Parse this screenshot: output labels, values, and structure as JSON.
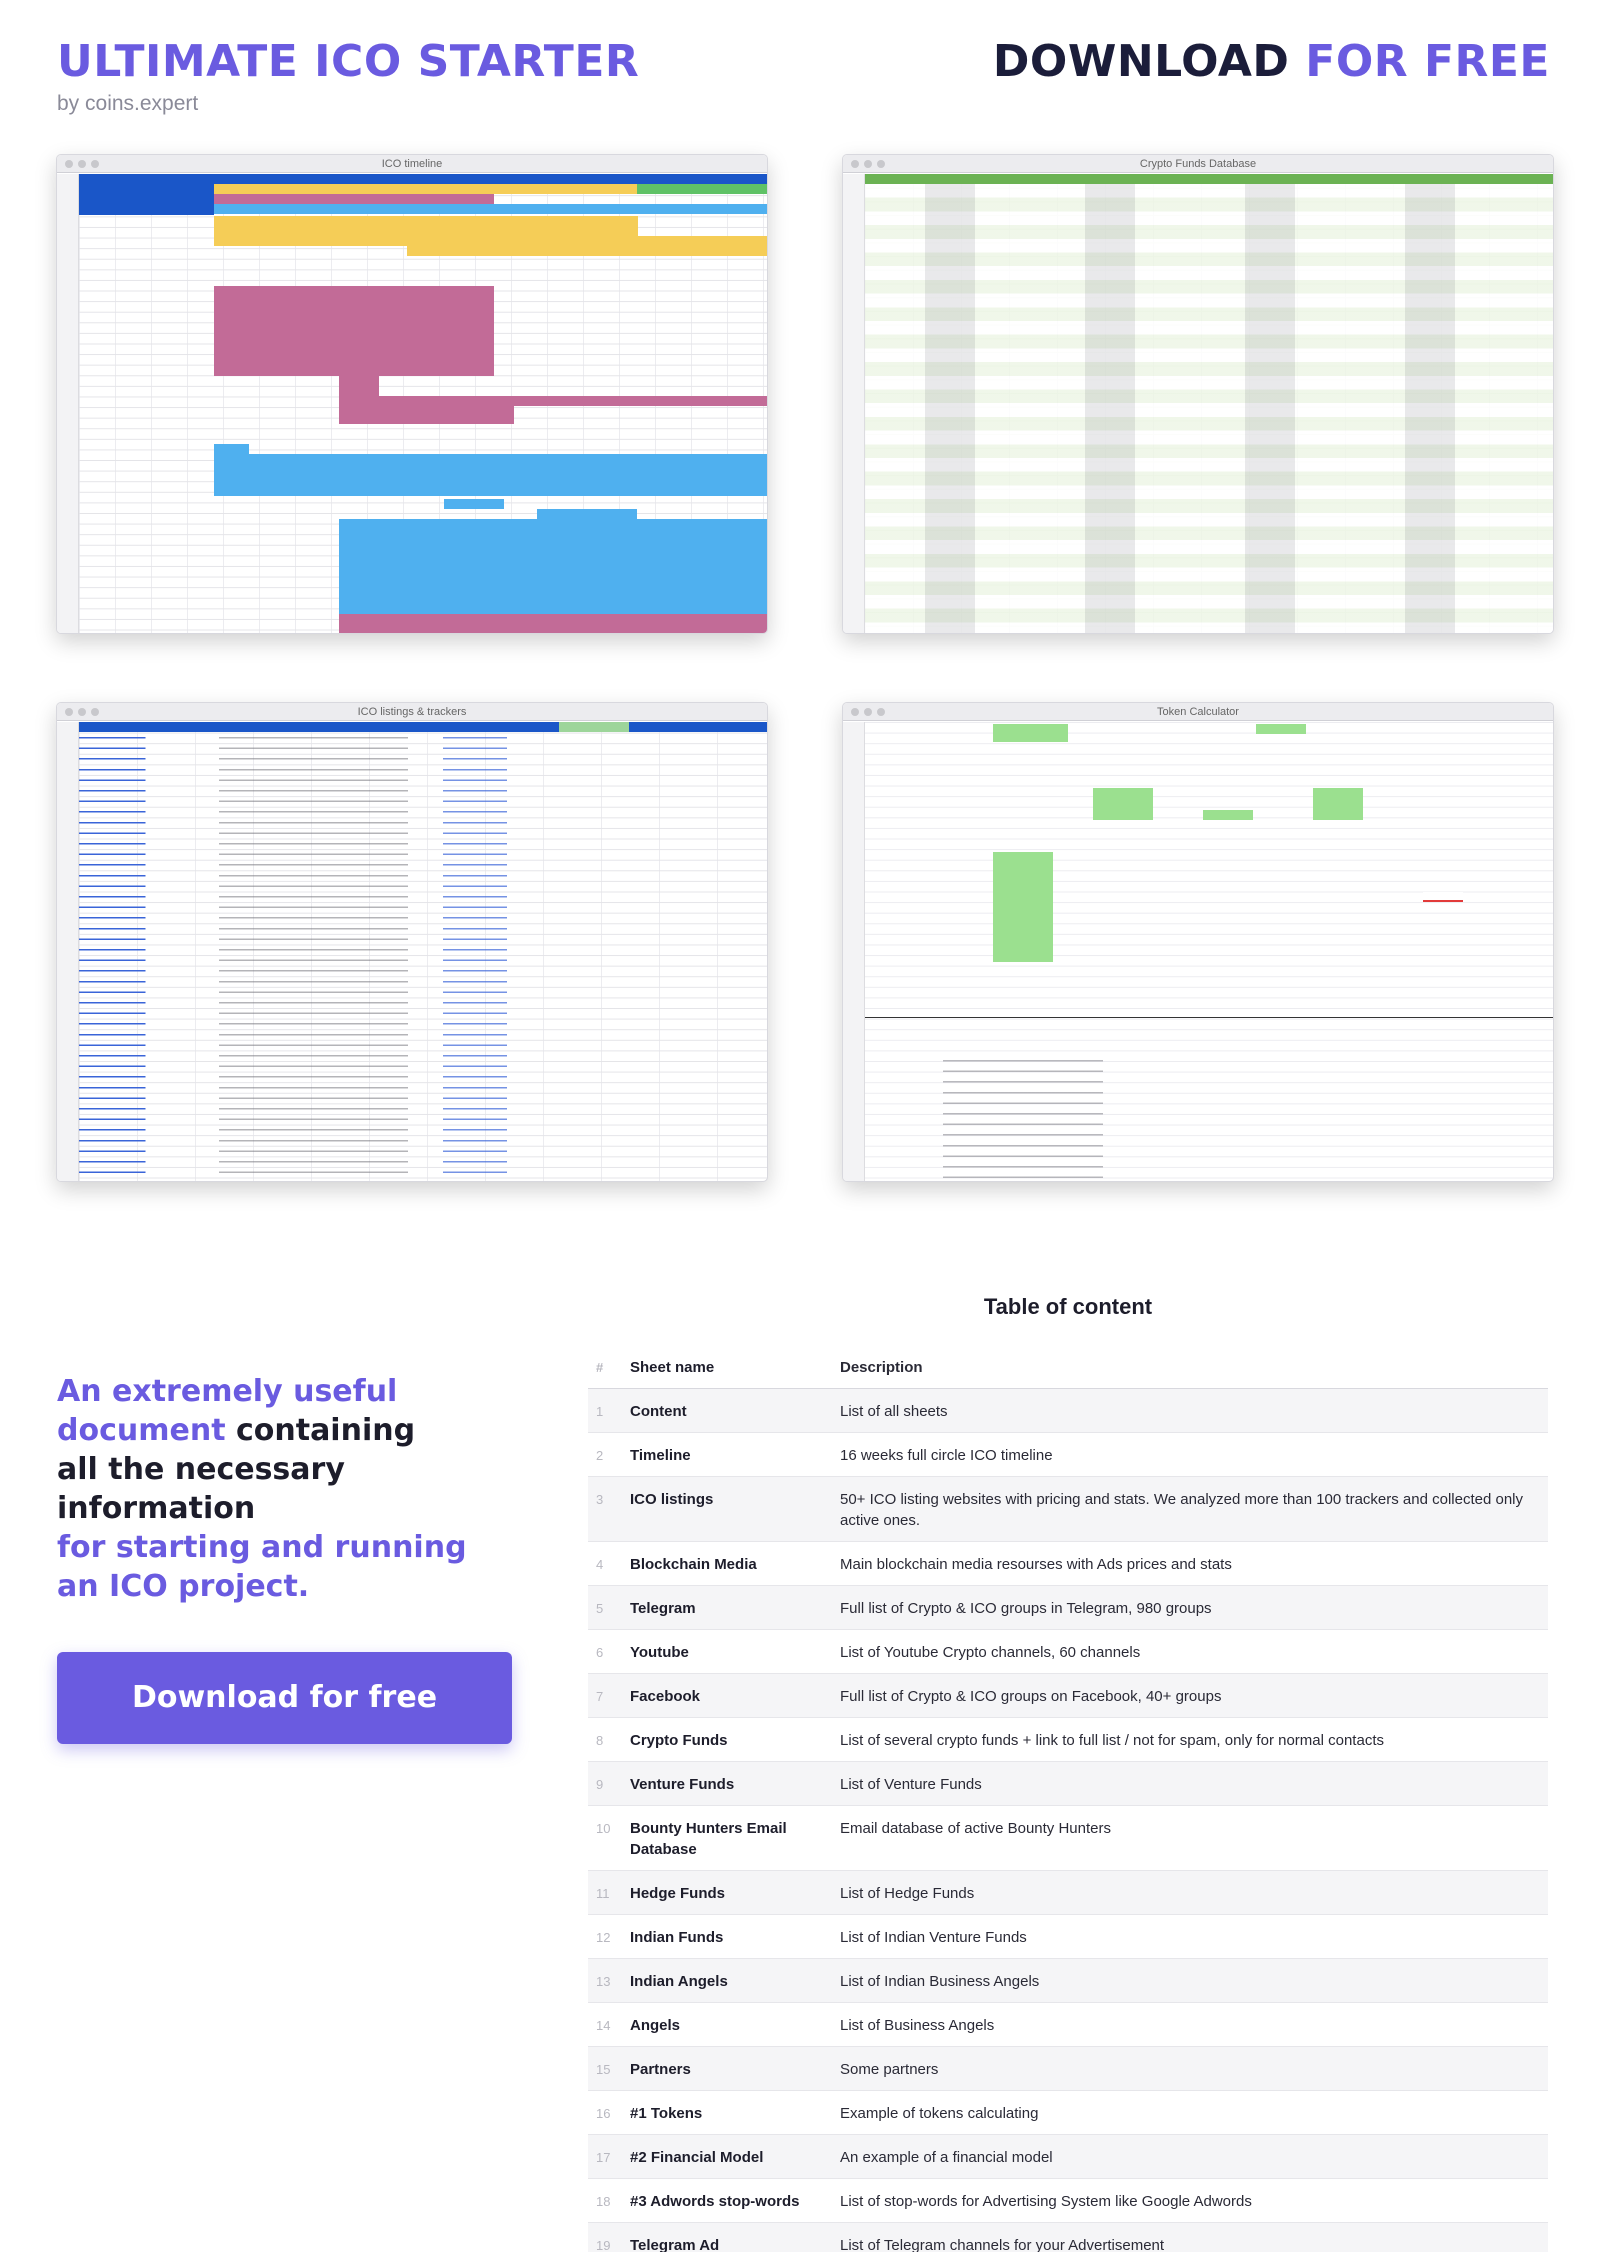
{
  "header": {
    "title": "ULTIMATE ICO STARTER",
    "byline": "by coins.expert",
    "download_dark": "DOWNLOAD",
    "download_accent": "FOR FREE"
  },
  "sheets": [
    {
      "title": "ICO timeline"
    },
    {
      "title": "Crypto Funds Database"
    },
    {
      "title": "ICO listings & trackers"
    },
    {
      "title": "Token Calculator"
    }
  ],
  "lead": {
    "line1_accent": "An extremely useful",
    "line2_accent": "document",
    "line2_dark": " containing",
    "line3_dark": "all the necessary information",
    "line4_accent": "for starting and running",
    "line5_accent": "an ICO project."
  },
  "cta": {
    "label": "Download for free"
  },
  "toc": {
    "title": "Table of content",
    "columns": {
      "num": "#",
      "name": "Sheet name",
      "desc": "Description"
    },
    "rows": [
      {
        "num": "1",
        "name": "Content",
        "desc": "List of all sheets"
      },
      {
        "num": "2",
        "name": "Timeline",
        "desc": "16 weeks full circle ICO timeline"
      },
      {
        "num": "3",
        "name": "ICO listings",
        "desc": "50+ ICO listing websites with pricing and stats. We analyzed more than 100 trackers and collected only active ones."
      },
      {
        "num": "4",
        "name": "Blockchain Media",
        "desc": "Main blockchain media resourses with Ads prices and stats"
      },
      {
        "num": "5",
        "name": "Telegram",
        "desc": "Full list of Crypto & ICO groups in Telegram, 980 groups"
      },
      {
        "num": "6",
        "name": "Youtube",
        "desc": "List of Youtube Crypto channels, 60 channels"
      },
      {
        "num": "7",
        "name": "Facebook",
        "desc": "Full list of Crypto & ICO groups on Facebook, 40+ groups"
      },
      {
        "num": "8",
        "name": "Crypto Funds",
        "desc": "List of several crypto funds + link to full list / not for spam, only for normal contacts"
      },
      {
        "num": "9",
        "name": "Venture Funds",
        "desc": "List of Venture Funds"
      },
      {
        "num": "10",
        "name": "Bounty Hunters Email Database",
        "desc": "Email database of active Bounty Hunters"
      },
      {
        "num": "11",
        "name": "Hedge Funds",
        "desc": "List of Hedge Funds"
      },
      {
        "num": "12",
        "name": "Indian Funds",
        "desc": "List of Indian Venture Funds"
      },
      {
        "num": "13",
        "name": "Indian Angels",
        "desc": "List of Indian Business Angels"
      },
      {
        "num": "14",
        "name": "Angels",
        "desc": "List of Business Angels"
      },
      {
        "num": "15",
        "name": "Partners",
        "desc": "Some partners"
      },
      {
        "num": "16",
        "name": "#1 Tokens",
        "desc": "Example of tokens calculating"
      },
      {
        "num": "17",
        "name": "#2 Financial Model",
        "desc": "An example of a financial model"
      },
      {
        "num": "18",
        "name": "#3 Adwords stop-words",
        "desc": "List of stop-words for Advertising System like Google Adwords"
      },
      {
        "num": "19",
        "name": "Telegram Ad",
        "desc": "List of Telegram channels for your Advertisement"
      }
    ]
  }
}
